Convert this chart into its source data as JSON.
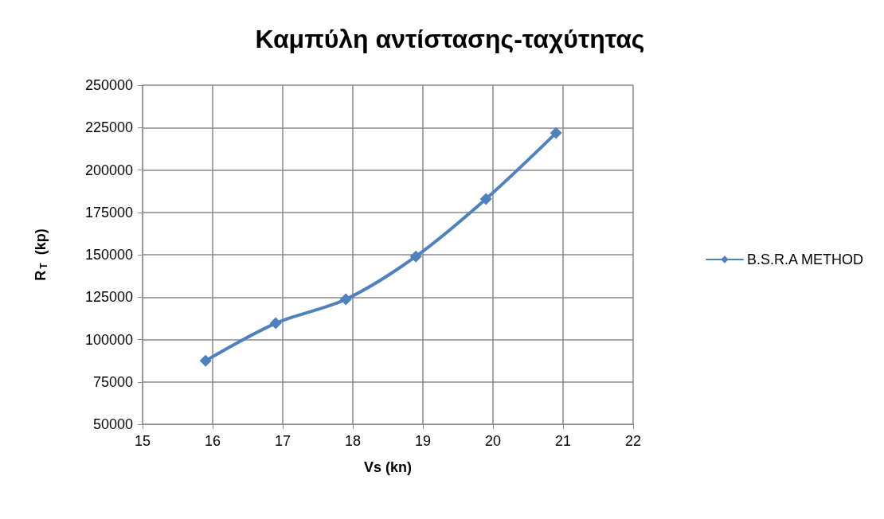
{
  "chart_data": {
    "type": "line",
    "title": "Καμπύλη αντίστασης-ταχύτητας",
    "xlabel": "Vs (kn)",
    "ylabel": "R$_{T}$  (kp)",
    "x": [
      15.9,
      16.9,
      17.9,
      18.9,
      19.9,
      20.9
    ],
    "series": [
      {
        "name": "B.S.R.A METHOD",
        "color": "#4f81bd",
        "values": [
          87500,
          109600,
          123700,
          149000,
          182900,
          221800
        ]
      }
    ],
    "xlim": [
      15,
      22
    ],
    "xticks": [
      15,
      16,
      17,
      18,
      19,
      20,
      21,
      22
    ],
    "ylim": [
      50000,
      250000
    ],
    "yticks": [
      50000,
      75000,
      100000,
      125000,
      150000,
      175000,
      200000,
      225000,
      250000
    ],
    "grid": true,
    "legend": "right",
    "marker": "diamond",
    "line_style": "solid"
  }
}
